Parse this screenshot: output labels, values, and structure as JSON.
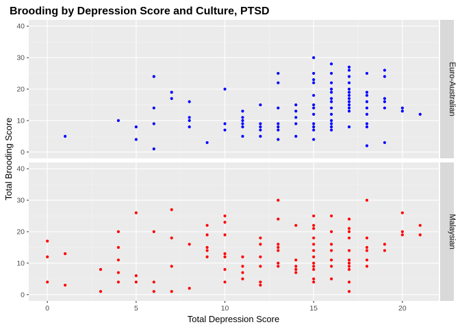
{
  "chart_data": {
    "type": "scatter",
    "title": "Brooding by Depression Score and Culture, PTSD",
    "xlabel": "Total Depression Score",
    "ylabel": "Total Brooding Score",
    "xlim": [
      -1.05,
      22.05
    ],
    "ylim": [
      -2,
      42
    ],
    "x_ticks": [
      0,
      5,
      10,
      15,
      20
    ],
    "y_ticks": [
      0,
      10,
      20,
      30,
      40
    ],
    "grid": true,
    "facet_layout": "rows",
    "panels": [
      {
        "name": "Euro-Australian",
        "color": "#0000FF",
        "points": [
          [
            1,
            5
          ],
          [
            4,
            10
          ],
          [
            5,
            4
          ],
          [
            5,
            8
          ],
          [
            6,
            1
          ],
          [
            6,
            9
          ],
          [
            6,
            14
          ],
          [
            6,
            24
          ],
          [
            7,
            17
          ],
          [
            7,
            19
          ],
          [
            8,
            8
          ],
          [
            8,
            10
          ],
          [
            8,
            11
          ],
          [
            8,
            16
          ],
          [
            9,
            3
          ],
          [
            10,
            7
          ],
          [
            10,
            9
          ],
          [
            10,
            20
          ],
          [
            11,
            5
          ],
          [
            11,
            8
          ],
          [
            11,
            9
          ],
          [
            11,
            10
          ],
          [
            11,
            11
          ],
          [
            11,
            13
          ],
          [
            12,
            5
          ],
          [
            12,
            7
          ],
          [
            12,
            8
          ],
          [
            12,
            9
          ],
          [
            12,
            15
          ],
          [
            13,
            4
          ],
          [
            13,
            7
          ],
          [
            13,
            8
          ],
          [
            13,
            9
          ],
          [
            13,
            14
          ],
          [
            13,
            22
          ],
          [
            13,
            25
          ],
          [
            14,
            5
          ],
          [
            14,
            9
          ],
          [
            14,
            11
          ],
          [
            14,
            13
          ],
          [
            14,
            15
          ],
          [
            15,
            4
          ],
          [
            15,
            7
          ],
          [
            15,
            8
          ],
          [
            15,
            9
          ],
          [
            15,
            12
          ],
          [
            15,
            14
          ],
          [
            15,
            15
          ],
          [
            15,
            18
          ],
          [
            15,
            22
          ],
          [
            15,
            23
          ],
          [
            15,
            25
          ],
          [
            15,
            30
          ],
          [
            16,
            7
          ],
          [
            16,
            8
          ],
          [
            16,
            9
          ],
          [
            16,
            10
          ],
          [
            16,
            12
          ],
          [
            16,
            14
          ],
          [
            16,
            16
          ],
          [
            16,
            17
          ],
          [
            16,
            19
          ],
          [
            16,
            20
          ],
          [
            16,
            22
          ],
          [
            16,
            25
          ],
          [
            16,
            28
          ],
          [
            17,
            8
          ],
          [
            17,
            13
          ],
          [
            17,
            14
          ],
          [
            17,
            15
          ],
          [
            17,
            16
          ],
          [
            17,
            17
          ],
          [
            17,
            18
          ],
          [
            17,
            19
          ],
          [
            17,
            20
          ],
          [
            17,
            22
          ],
          [
            17,
            24
          ],
          [
            17,
            26
          ],
          [
            17,
            27
          ],
          [
            18,
            2
          ],
          [
            18,
            8
          ],
          [
            18,
            9
          ],
          [
            18,
            12
          ],
          [
            18,
            14
          ],
          [
            18,
            16
          ],
          [
            18,
            18
          ],
          [
            18,
            19
          ],
          [
            18,
            25
          ],
          [
            19,
            3
          ],
          [
            19,
            14
          ],
          [
            19,
            16
          ],
          [
            19,
            17
          ],
          [
            19,
            24
          ],
          [
            19,
            26
          ],
          [
            20,
            13
          ],
          [
            20,
            14
          ],
          [
            21,
            12
          ]
        ]
      },
      {
        "name": "Malaysian",
        "color": "#FF0000",
        "points": [
          [
            0,
            4
          ],
          [
            0,
            12
          ],
          [
            0,
            17
          ],
          [
            1,
            3
          ],
          [
            1,
            13
          ],
          [
            3,
            1
          ],
          [
            3,
            8
          ],
          [
            4,
            4
          ],
          [
            4,
            7
          ],
          [
            4,
            11
          ],
          [
            4,
            15
          ],
          [
            4,
            20
          ],
          [
            5,
            4
          ],
          [
            5,
            6
          ],
          [
            5,
            26
          ],
          [
            6,
            1
          ],
          [
            6,
            4
          ],
          [
            6,
            20
          ],
          [
            7,
            1
          ],
          [
            7,
            9
          ],
          [
            7,
            18
          ],
          [
            7,
            27
          ],
          [
            8,
            2
          ],
          [
            8,
            16
          ],
          [
            9,
            12
          ],
          [
            9,
            14
          ],
          [
            9,
            15
          ],
          [
            9,
            19
          ],
          [
            9,
            22
          ],
          [
            10,
            4
          ],
          [
            10,
            8
          ],
          [
            10,
            12
          ],
          [
            10,
            13
          ],
          [
            10,
            19
          ],
          [
            10,
            23
          ],
          [
            10,
            25
          ],
          [
            11,
            5
          ],
          [
            11,
            7
          ],
          [
            11,
            9
          ],
          [
            11,
            12
          ],
          [
            12,
            3
          ],
          [
            12,
            4
          ],
          [
            12,
            9
          ],
          [
            12,
            12
          ],
          [
            12,
            16
          ],
          [
            12,
            18
          ],
          [
            13,
            9
          ],
          [
            13,
            10
          ],
          [
            13,
            14
          ],
          [
            13,
            15
          ],
          [
            13,
            16
          ],
          [
            13,
            24
          ],
          [
            13,
            30
          ],
          [
            14,
            7
          ],
          [
            14,
            8
          ],
          [
            14,
            9
          ],
          [
            14,
            11
          ],
          [
            14,
            22
          ],
          [
            15,
            4
          ],
          [
            15,
            5
          ],
          [
            15,
            8
          ],
          [
            15,
            9
          ],
          [
            15,
            10
          ],
          [
            15,
            12
          ],
          [
            15,
            14
          ],
          [
            15,
            16
          ],
          [
            15,
            18
          ],
          [
            15,
            21
          ],
          [
            15,
            22
          ],
          [
            15,
            25
          ],
          [
            16,
            5
          ],
          [
            16,
            9
          ],
          [
            16,
            11
          ],
          [
            16,
            14
          ],
          [
            16,
            16
          ],
          [
            16,
            20
          ],
          [
            16,
            25
          ],
          [
            17,
            1
          ],
          [
            17,
            4
          ],
          [
            17,
            8
          ],
          [
            17,
            9
          ],
          [
            17,
            10
          ],
          [
            17,
            11
          ],
          [
            17,
            14
          ],
          [
            17,
            18
          ],
          [
            17,
            20
          ],
          [
            17,
            21
          ],
          [
            17,
            24
          ],
          [
            18,
            9
          ],
          [
            18,
            11
          ],
          [
            18,
            14
          ],
          [
            18,
            15
          ],
          [
            18,
            18
          ],
          [
            18,
            30
          ],
          [
            19,
            14
          ],
          [
            19,
            16
          ],
          [
            20,
            19
          ],
          [
            20,
            20
          ],
          [
            20,
            26
          ],
          [
            21,
            19
          ],
          [
            21,
            22
          ]
        ]
      }
    ]
  }
}
